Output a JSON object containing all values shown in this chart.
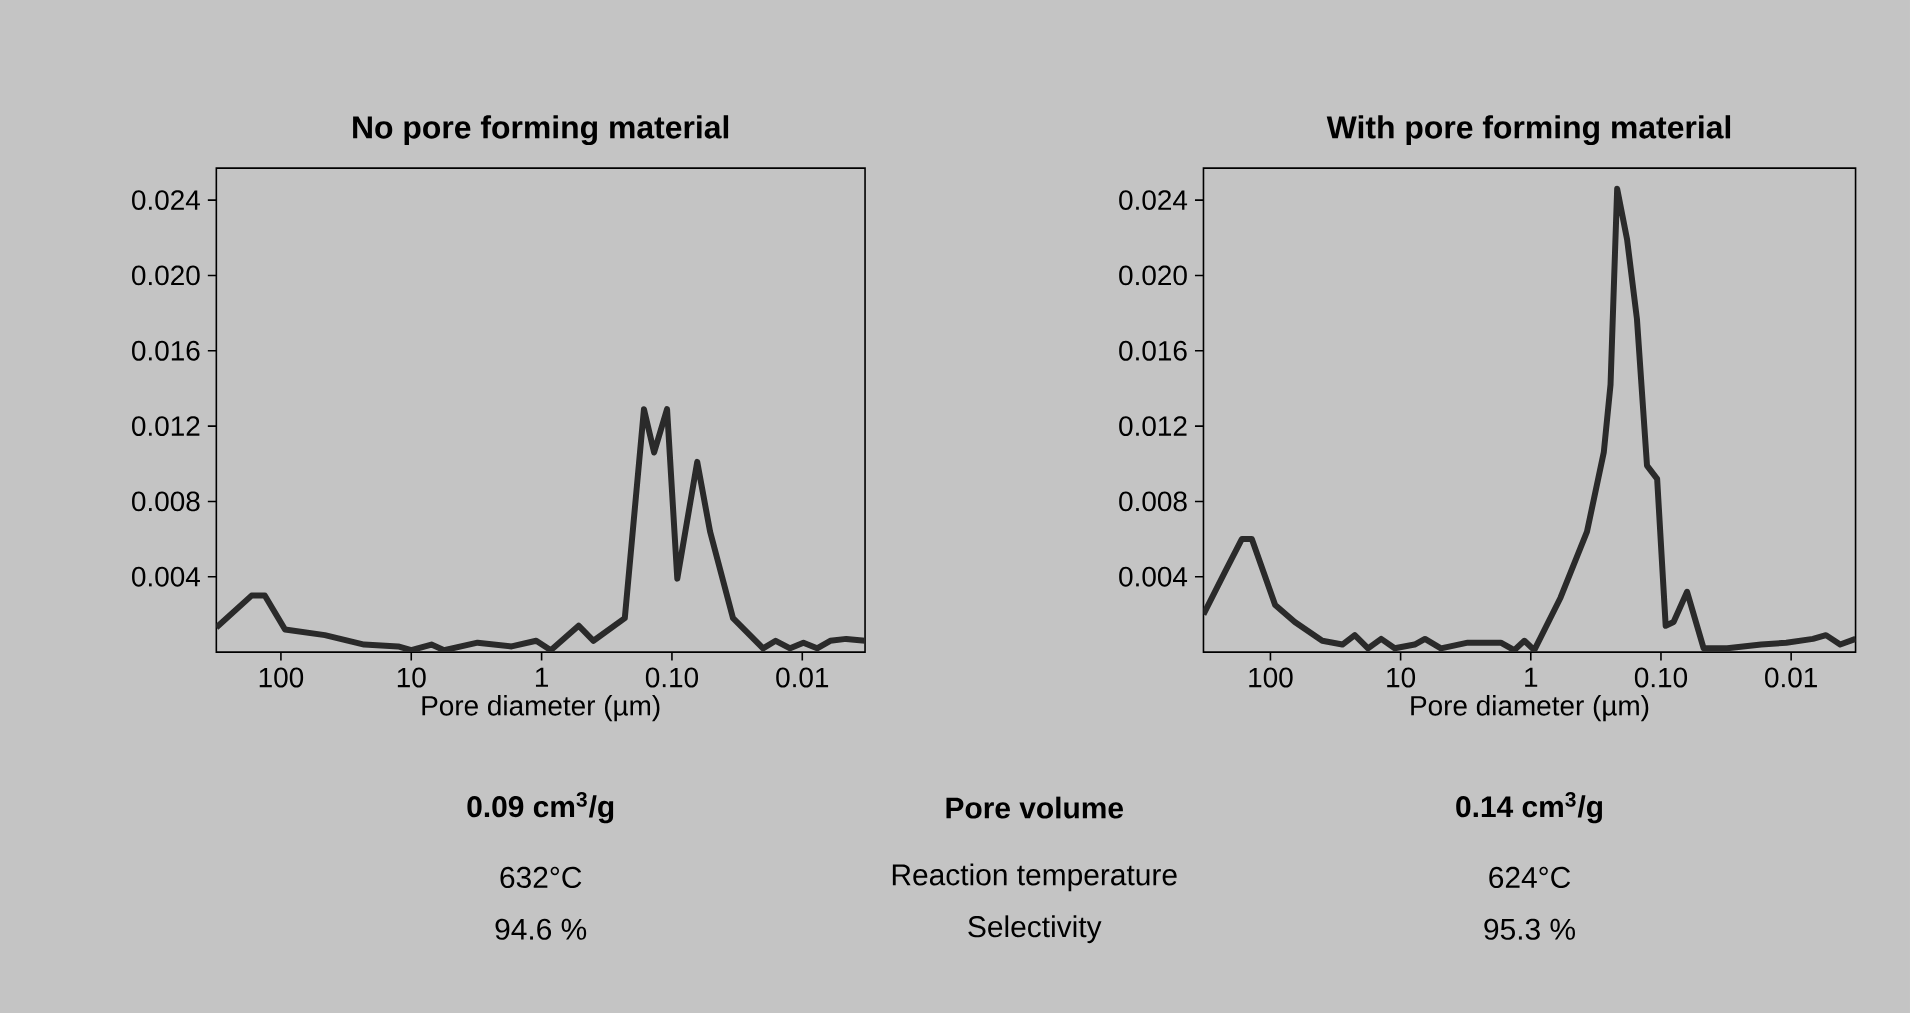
{
  "chart_data": [
    {
      "type": "line",
      "title": "No pore forming material",
      "xlabel": "Pore diameter  (µm)",
      "log": "x",
      "color": "#2a2a2a",
      "x": [
        313,
        168,
        133,
        93,
        46,
        23,
        12.6,
        10,
        7.0,
        5.6,
        3.1,
        1.7,
        1.1,
        0.85,
        0.52,
        0.4,
        0.23,
        0.164,
        0.137,
        0.109,
        0.091,
        0.064,
        0.051,
        0.034,
        0.02,
        0.016,
        0.0124,
        0.0098,
        0.0077,
        0.0061,
        0.0046,
        0.0033
      ],
      "values": [
        0.0013,
        0.003,
        0.003,
        0.0012,
        0.0009,
        0.0004,
        0.0003,
        0.0001,
        0.0004,
        0.0001,
        0.0005,
        0.0003,
        0.0006,
        0.0001,
        0.0014,
        0.0006,
        0.0018,
        0.0129,
        0.0106,
        0.0129,
        0.0039,
        0.0101,
        0.0064,
        0.0018,
        0.0002,
        0.0006,
        0.0002,
        0.0005,
        0.0002,
        0.0006,
        0.0007,
        0.0006
      ],
      "xlim": [
        313,
        0.0033
      ],
      "xticks": [
        100,
        10,
        1,
        {
          "value": 0.1,
          "label": "0.10"
        },
        0.01
      ],
      "ylim": [
        0,
        0.0257
      ],
      "yticks": [
        0.004,
        0.008,
        0.012,
        0.016,
        {
          "value": 0.02,
          "label": "0.020"
        },
        0.024
      ]
    },
    {
      "type": "line",
      "title": "With pore forming material",
      "xlabel": "Pore diameter  (µm)",
      "log": "x",
      "color": "#2a2a2a",
      "x": [
        327,
        222,
        166,
        139,
        92,
        65,
        40,
        28,
        22.5,
        17.8,
        14.1,
        11.1,
        7.8,
        6.5,
        4.9,
        3.05,
        1.7,
        1.34,
        1.12,
        0.94,
        0.59,
        0.37,
        0.275,
        0.244,
        0.217,
        0.182,
        0.153,
        0.128,
        0.107,
        0.092,
        0.08,
        0.063,
        0.047,
        0.031,
        0.017,
        0.0109,
        0.0068,
        0.0054,
        0.0042,
        0.0032
      ],
      "values": [
        0.002,
        0.0043,
        0.006,
        0.006,
        0.0025,
        0.0016,
        0.0006,
        0.0004,
        0.0009,
        0.0002,
        0.0007,
        0.0002,
        0.0004,
        0.0007,
        0.0002,
        0.0005,
        0.0005,
        0.0001,
        0.0006,
        0.0001,
        0.0029,
        0.0064,
        0.0106,
        0.0142,
        0.0246,
        0.0219,
        0.0177,
        0.0099,
        0.0092,
        0.0014,
        0.0016,
        0.0032,
        0.0002,
        0.0002,
        0.0004,
        0.0005,
        0.0007,
        0.0009,
        0.0004,
        0.0007
      ],
      "xlim": [
        327,
        0.0032
      ],
      "xticks": [
        100,
        10,
        1,
        {
          "value": 0.1,
          "label": "0.10"
        },
        0.01
      ],
      "ylim": [
        0,
        0.0257
      ],
      "yticks": [
        0.004,
        0.008,
        0.012,
        0.016,
        {
          "value": 0.02,
          "label": "0.020"
        },
        0.024
      ]
    },
    {
      "type": "other",
      "annotations": [
        "0.09 cm$^{3}$/g",
        "Pore volume",
        "0.14 cm$^{3}$/g",
        "632°C",
        "Reaction temperature",
        "624°C",
        "94.6 %",
        "Selectivity",
        "95.3 %"
      ]
    }
  ]
}
